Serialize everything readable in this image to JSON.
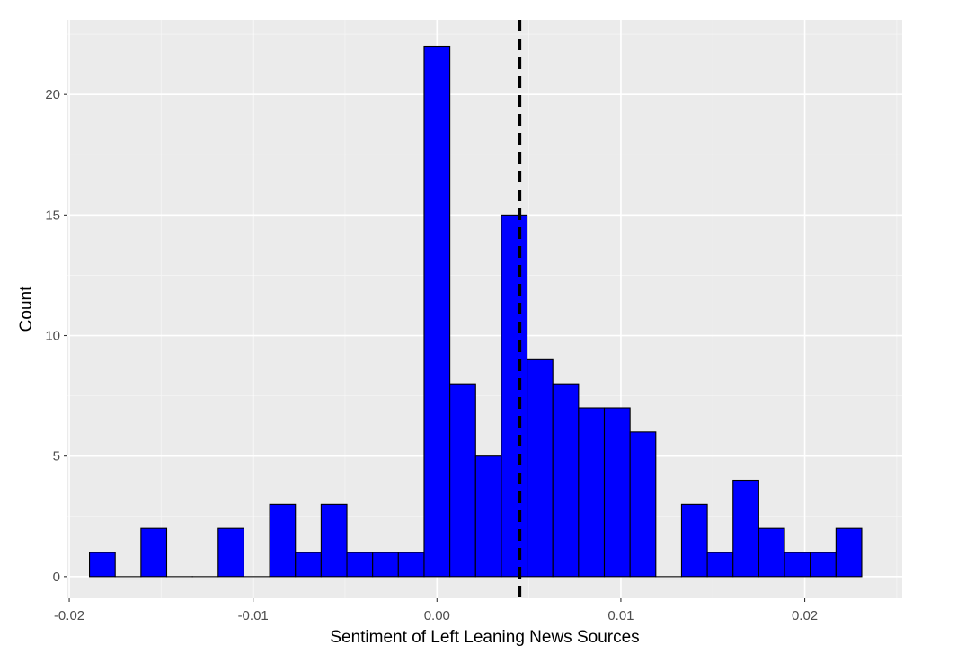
{
  "chart_data": {
    "type": "bar",
    "subtype": "histogram",
    "xlabel": "Sentiment of Left Leaning News Sources",
    "ylabel": "Count",
    "xlim": [
      -0.0201,
      0.0253
    ],
    "ylim": [
      -0.9,
      23.1
    ],
    "x_ticks": [
      -0.02,
      -0.01,
      0.0,
      0.01,
      0.02
    ],
    "x_tick_labels": [
      "-0.02",
      "-0.01",
      "0.00",
      "0.01",
      "0.02"
    ],
    "y_ticks": [
      0,
      5,
      10,
      15,
      20
    ],
    "y_tick_labels": [
      "0",
      "5",
      "10",
      "15",
      "20"
    ],
    "bin_width": 0.0014,
    "bin_start": -0.0189,
    "counts": [
      1,
      0,
      2,
      0,
      0,
      2,
      0,
      3,
      1,
      3,
      1,
      1,
      1,
      22,
      8,
      5,
      15,
      9,
      8,
      7,
      7,
      6,
      0,
      3,
      1,
      4,
      2,
      1,
      1,
      2
    ],
    "reference_line": {
      "x": 0.0045,
      "style": "dashed",
      "color": "#000000"
    },
    "bar_color": "#0000ff",
    "bar_outline": "#000000",
    "panel_background": "#ebebeb",
    "grid": true
  }
}
